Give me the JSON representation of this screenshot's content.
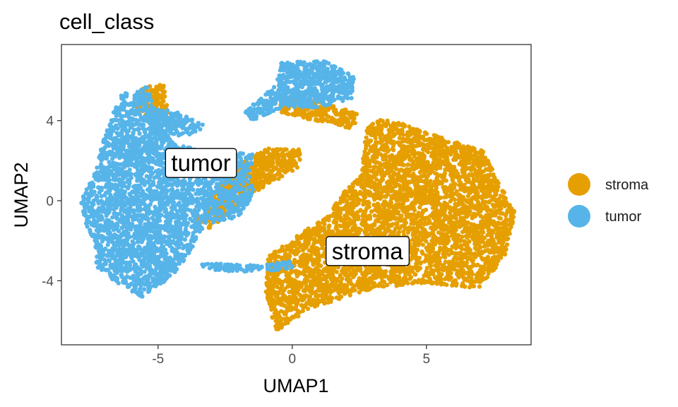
{
  "chart_data": {
    "type": "scatter",
    "title": "cell_class",
    "xlabel": "UMAP1",
    "ylabel": "UMAP2",
    "xlim": [
      -8.6,
      8.9
    ],
    "ylim": [
      -7.2,
      7.8
    ],
    "x_ticks": [
      -5,
      0,
      5
    ],
    "y_ticks": [
      -4,
      0,
      4
    ],
    "grid": false,
    "legend_position": "right",
    "series": [
      {
        "name": "stroma",
        "color": "#E69F00"
      },
      {
        "name": "tumor",
        "color": "#56B4E9"
      }
    ],
    "annotations": [
      {
        "text": "tumor",
        "x": -3.4,
        "y": 1.9
      },
      {
        "text": "stroma",
        "x": 2.8,
        "y": -2.5
      }
    ]
  }
}
